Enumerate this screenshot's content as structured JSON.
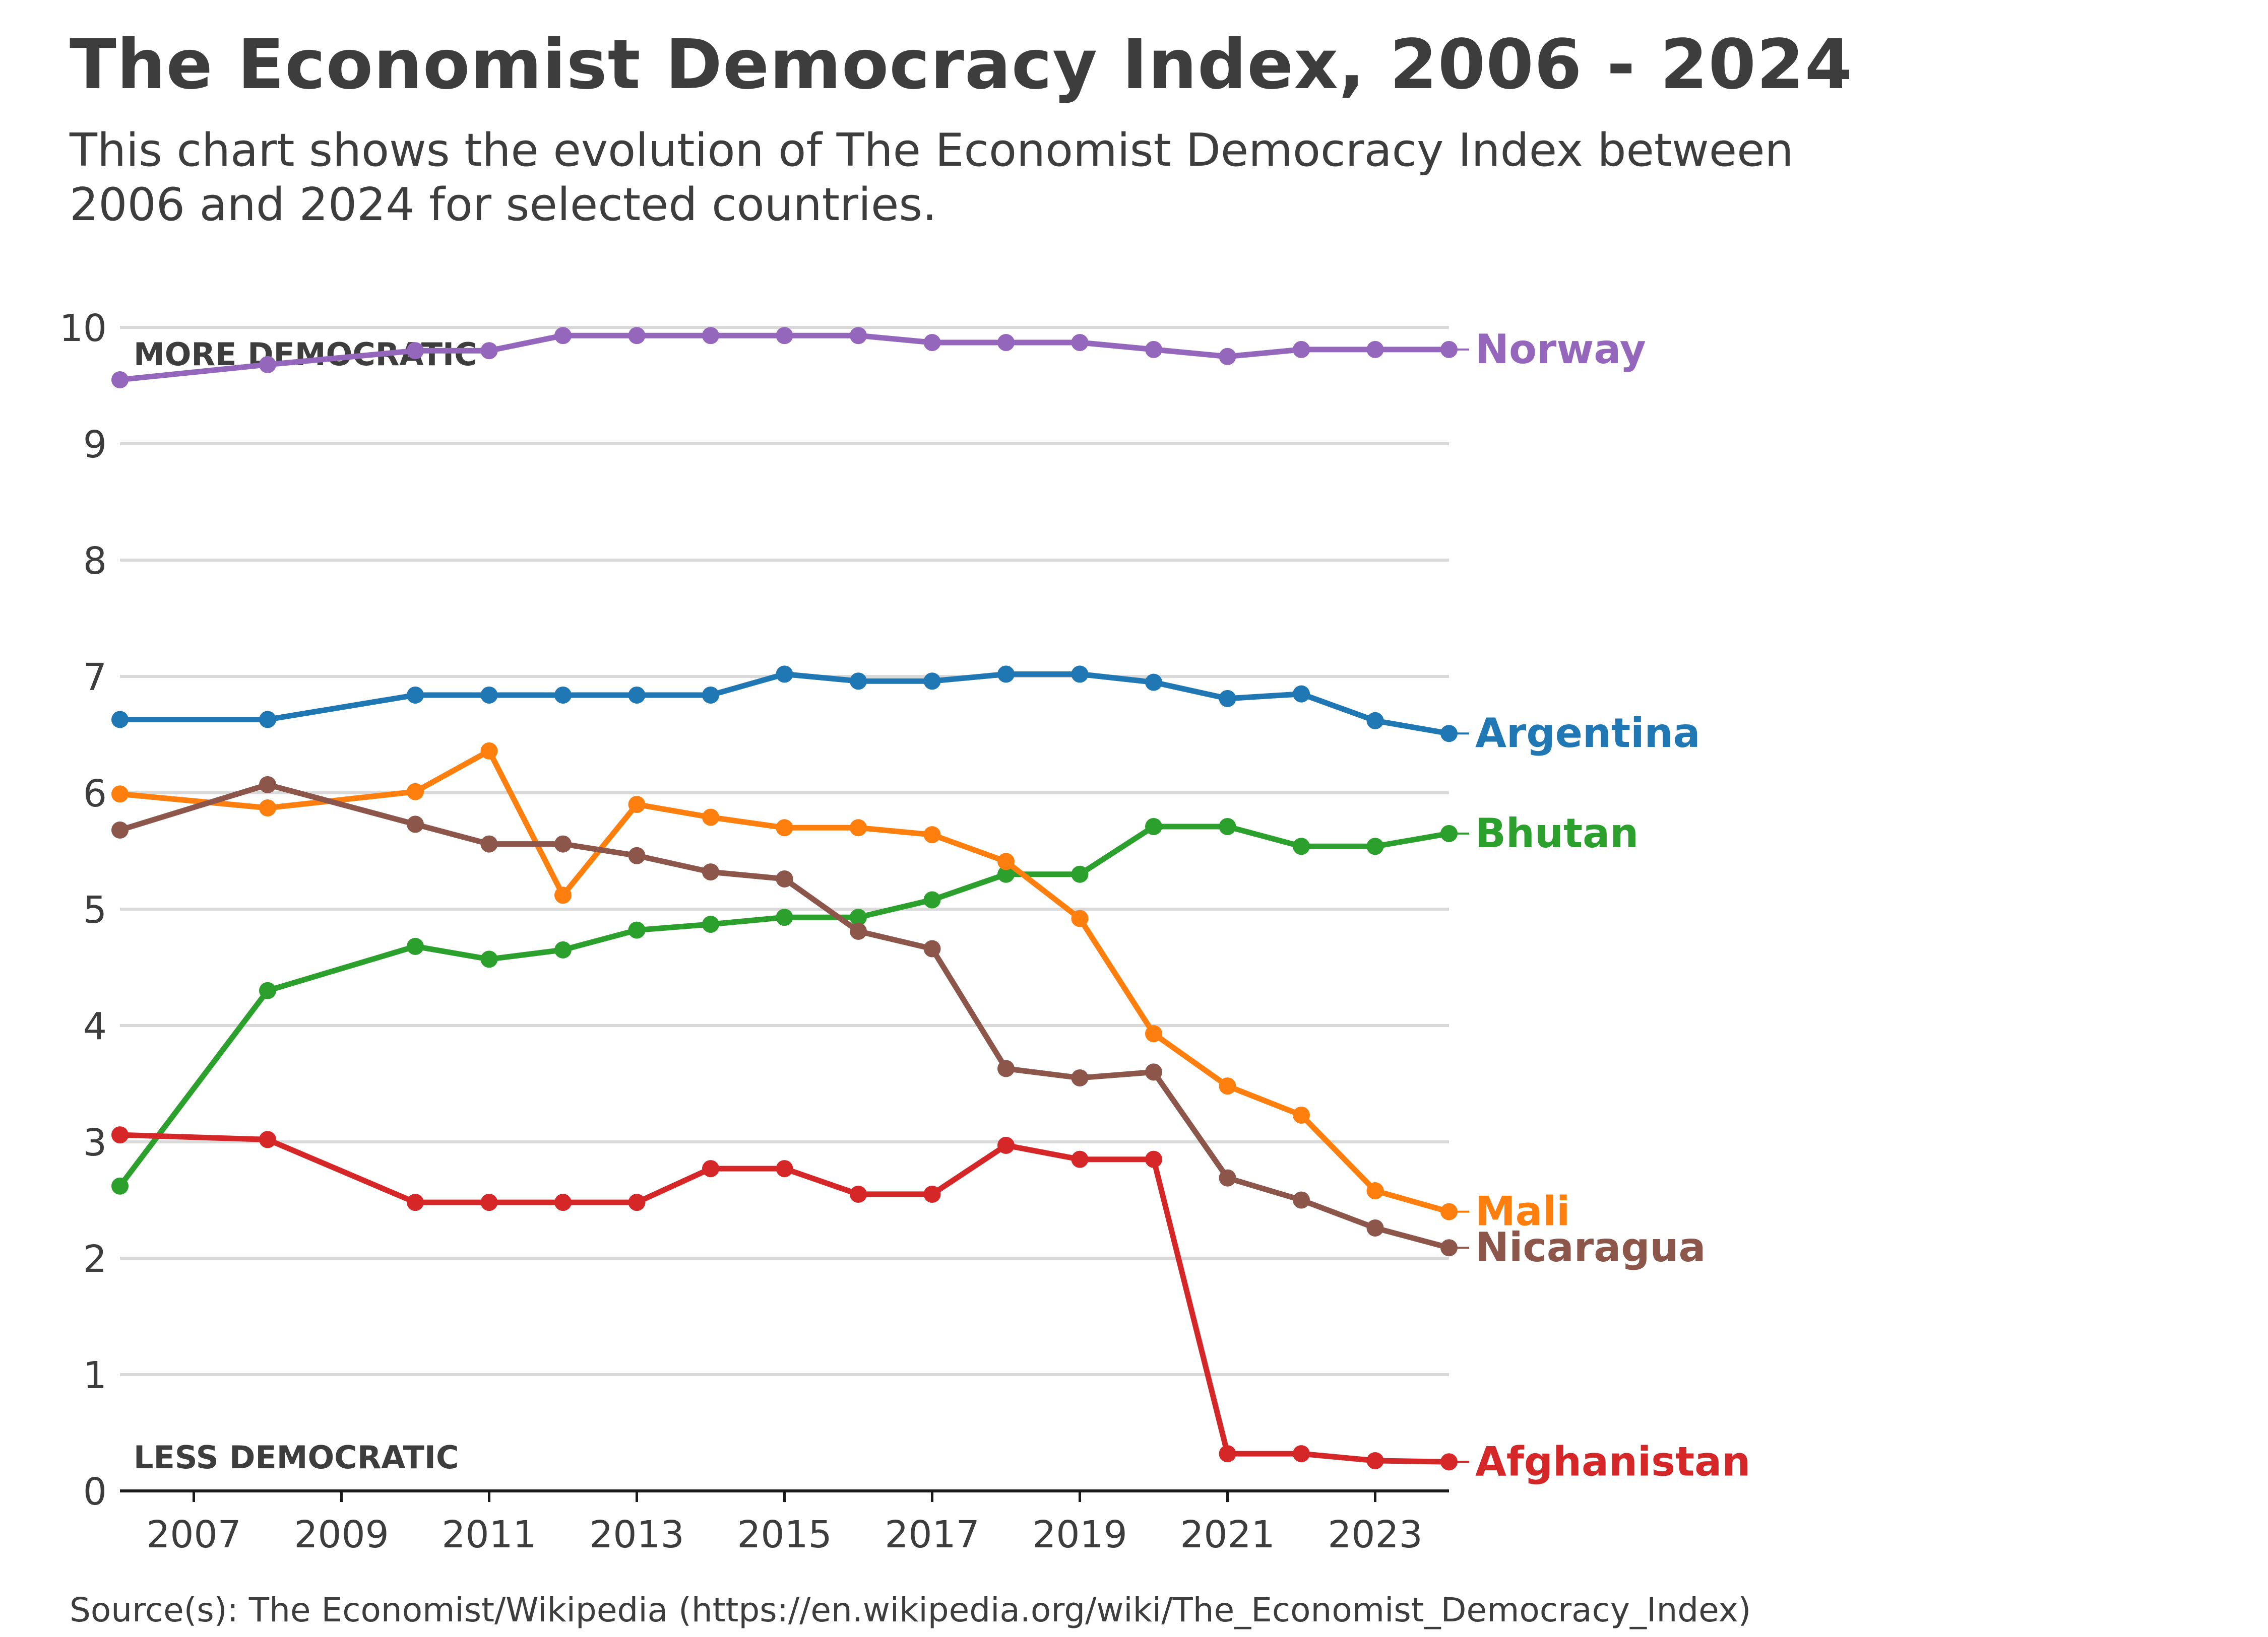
{
  "header": {
    "title": "The Economist Democracy Index, 2006 - 2024",
    "subtitle": "This chart shows the evolution of The Economist Democracy Index between 2006 and 2024 for selected countries."
  },
  "footer": {
    "source": "Source(s): The Economist/Wikipedia (https://en.wikipedia.org/wiki/The_Economist_Democracy_Index)"
  },
  "chart_data": {
    "type": "line",
    "title": "The Economist Democracy Index, 2006 - 2024",
    "subtitle": "This chart shows the evolution of The Economist Democracy Index between 2006 and 2024 for selected countries.",
    "xlabel": "",
    "ylabel": "",
    "xlim": [
      2006,
      2024
    ],
    "ylim": [
      0,
      10
    ],
    "x_ticks": [
      2007,
      2009,
      2011,
      2013,
      2015,
      2017,
      2019,
      2021,
      2023
    ],
    "y_ticks": [
      0,
      1,
      2,
      3,
      4,
      5,
      6,
      7,
      8,
      9,
      10
    ],
    "grid": "horizontal",
    "legend": "direct labels at line ends (right)",
    "annotations": [
      {
        "text": "MORE DEMOCRATIC",
        "position": "top-left"
      },
      {
        "text": "LESS DEMOCRATIC",
        "position": "bottom-left"
      }
    ],
    "series": [
      {
        "name": "Norway",
        "color": "#9467bd",
        "points": [
          [
            2006,
            9.55
          ],
          [
            2008,
            9.68
          ],
          [
            2010,
            9.8
          ],
          [
            2011,
            9.8
          ],
          [
            2012,
            9.93
          ],
          [
            2013,
            9.93
          ],
          [
            2014,
            9.93
          ],
          [
            2015,
            9.93
          ],
          [
            2016,
            9.93
          ],
          [
            2017,
            9.87
          ],
          [
            2018,
            9.87
          ],
          [
            2019,
            9.87
          ],
          [
            2020,
            9.81
          ],
          [
            2021,
            9.75
          ],
          [
            2022,
            9.81
          ],
          [
            2023,
            9.81
          ],
          [
            2024,
            9.81
          ]
        ]
      },
      {
        "name": "Argentina",
        "color": "#1f77b4",
        "points": [
          [
            2006,
            6.63
          ],
          [
            2008,
            6.63
          ],
          [
            2010,
            6.84
          ],
          [
            2011,
            6.84
          ],
          [
            2012,
            6.84
          ],
          [
            2013,
            6.84
          ],
          [
            2014,
            6.84
          ],
          [
            2015,
            7.02
          ],
          [
            2016,
            6.96
          ],
          [
            2017,
            6.96
          ],
          [
            2018,
            7.02
          ],
          [
            2019,
            7.02
          ],
          [
            2020,
            6.95
          ],
          [
            2021,
            6.81
          ],
          [
            2022,
            6.85
          ],
          [
            2023,
            6.62
          ],
          [
            2024,
            6.51
          ]
        ]
      },
      {
        "name": "Bhutan",
        "color": "#2ca02c",
        "points": [
          [
            2006,
            2.62
          ],
          [
            2008,
            4.3
          ],
          [
            2010,
            4.68
          ],
          [
            2011,
            4.57
          ],
          [
            2012,
            4.65
          ],
          [
            2013,
            4.82
          ],
          [
            2014,
            4.87
          ],
          [
            2015,
            4.93
          ],
          [
            2016,
            4.93
          ],
          [
            2017,
            5.08
          ],
          [
            2018,
            5.3
          ],
          [
            2019,
            5.3
          ],
          [
            2020,
            5.71
          ],
          [
            2021,
            5.71
          ],
          [
            2022,
            5.54
          ],
          [
            2023,
            5.54
          ],
          [
            2024,
            5.65
          ]
        ]
      },
      {
        "name": "Mali",
        "color": "#ff7f0e",
        "points": [
          [
            2006,
            5.99
          ],
          [
            2008,
            5.87
          ],
          [
            2010,
            6.01
          ],
          [
            2011,
            6.36
          ],
          [
            2012,
            5.12
          ],
          [
            2013,
            5.9
          ],
          [
            2014,
            5.79
          ],
          [
            2015,
            5.7
          ],
          [
            2016,
            5.7
          ],
          [
            2017,
            5.64
          ],
          [
            2018,
            5.41
          ],
          [
            2019,
            4.92
          ],
          [
            2020,
            3.93
          ],
          [
            2021,
            3.48
          ],
          [
            2022,
            3.23
          ],
          [
            2023,
            2.58
          ],
          [
            2024,
            2.4
          ]
        ]
      },
      {
        "name": "Nicaragua",
        "color": "#8c564b",
        "points": [
          [
            2006,
            5.68
          ],
          [
            2008,
            6.07
          ],
          [
            2010,
            5.73
          ],
          [
            2011,
            5.56
          ],
          [
            2012,
            5.56
          ],
          [
            2013,
            5.46
          ],
          [
            2014,
            5.32
          ],
          [
            2015,
            5.26
          ],
          [
            2016,
            4.81
          ],
          [
            2017,
            4.66
          ],
          [
            2018,
            3.63
          ],
          [
            2019,
            3.55
          ],
          [
            2020,
            3.6
          ],
          [
            2021,
            2.69
          ],
          [
            2022,
            2.5
          ],
          [
            2023,
            2.26
          ],
          [
            2024,
            2.09
          ]
        ]
      },
      {
        "name": "Afghanistan",
        "color": "#d62728",
        "points": [
          [
            2006,
            3.06
          ],
          [
            2008,
            3.02
          ],
          [
            2010,
            2.48
          ],
          [
            2011,
            2.48
          ],
          [
            2012,
            2.48
          ],
          [
            2013,
            2.48
          ],
          [
            2014,
            2.77
          ],
          [
            2015,
            2.77
          ],
          [
            2016,
            2.55
          ],
          [
            2017,
            2.55
          ],
          [
            2018,
            2.97
          ],
          [
            2019,
            2.85
          ],
          [
            2020,
            2.85
          ],
          [
            2021,
            0.32
          ],
          [
            2022,
            0.32
          ],
          [
            2023,
            0.26
          ],
          [
            2024,
            0.25
          ]
        ]
      }
    ]
  }
}
